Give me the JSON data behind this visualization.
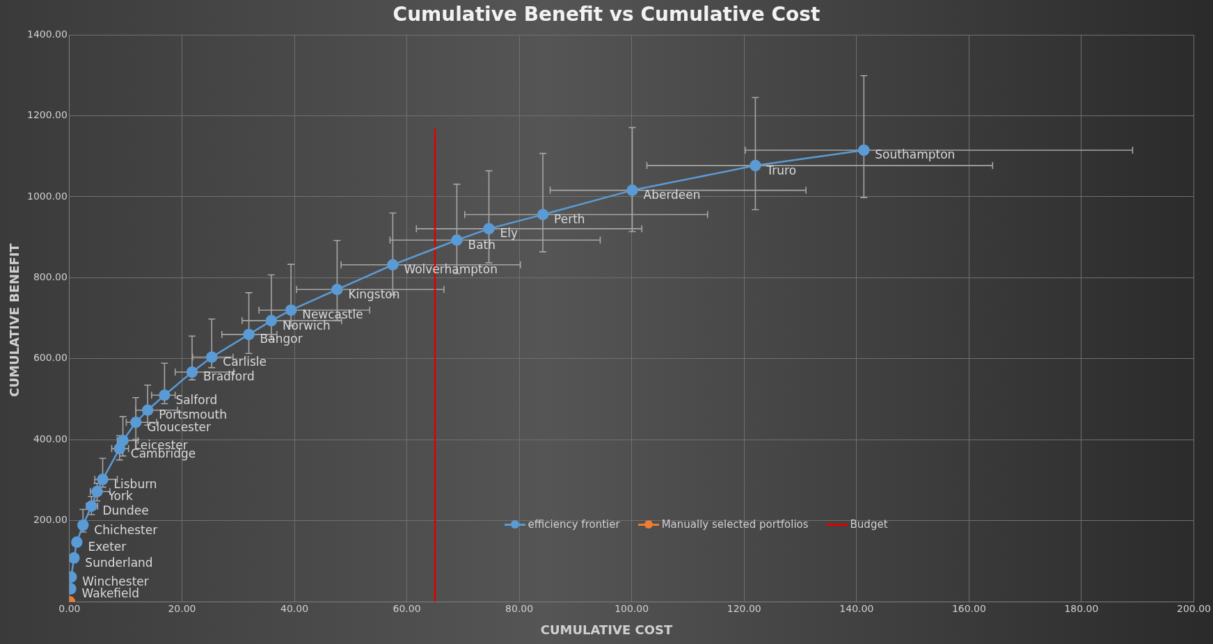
{
  "chart_data": {
    "type": "line",
    "title": "Cumulative Benefit vs Cumulative Cost",
    "xlabel": "CUMULATIVE COST",
    "ylabel": "CUMULATIVE BENEFIT",
    "xlim": [
      0,
      200
    ],
    "xticks": [
      {
        "value": 0,
        "label": "0.00"
      },
      {
        "value": 20,
        "label": "20.00"
      },
      {
        "value": 40,
        "label": "40.00"
      },
      {
        "value": 60,
        "label": "60.00"
      },
      {
        "value": 80,
        "label": "80.00"
      },
      {
        "value": 100,
        "label": "100.00"
      },
      {
        "value": 120,
        "label": "120.00"
      },
      {
        "value": 140,
        "label": "140.00"
      },
      {
        "value": 160,
        "label": "160.00"
      },
      {
        "value": 180,
        "label": "180.00"
      },
      {
        "value": 200,
        "label": "200.00"
      }
    ],
    "ylim": [
      0,
      1400
    ],
    "yticks": [
      {
        "value": 0,
        "label": null
      },
      {
        "value": 200,
        "label": "200.00"
      },
      {
        "value": 400,
        "label": "400.00"
      },
      {
        "value": 600,
        "label": "600.00"
      },
      {
        "value": 800,
        "label": "800.00"
      },
      {
        "value": 1000,
        "label": "1000.00"
      },
      {
        "value": 1200,
        "label": "1200.00"
      },
      {
        "value": 1400,
        "label": "1400.00"
      }
    ],
    "grid": true,
    "legend": "bottom right",
    "marker": "circle",
    "series": [
      {
        "name": "efficiency frontier",
        "color": "#5b9bd5",
        "x": [
          0.2,
          0.3,
          0.8,
          1.3,
          2.4,
          3.9,
          4.9,
          5.9,
          8.9,
          9.5,
          11.8,
          13.9,
          16.9,
          21.8,
          25.3,
          31.9,
          35.9,
          39.4,
          47.6,
          57.5,
          68.9,
          74.6,
          84.2,
          100.1,
          122.0,
          141.3
        ],
        "values": [
          32,
          61,
          108,
          147,
          189,
          236,
          272,
          302,
          378,
          398,
          443,
          473,
          510,
          567,
          604,
          660,
          694,
          720,
          771,
          832,
          893,
          921,
          956,
          1016,
          1077,
          1115
        ],
        "errors": [
          null,
          null,
          null,
          null,
          [
            172,
            228
          ],
          [
            215,
            260
          ],
          [
            249,
            292
          ],
          [
            283,
            354
          ],
          [
            350,
            410
          ],
          [
            360,
            457
          ],
          [
            401,
            504
          ],
          [
            436,
            535
          ],
          [
            489,
            589
          ],
          [
            548,
            656
          ],
          [
            578,
            698
          ],
          [
            613,
            763
          ],
          [
            648,
            807
          ],
          [
            681,
            833
          ],
          [
            695,
            892
          ],
          [
            758,
            960
          ],
          [
            810,
            1031
          ],
          [
            837,
            1064
          ],
          [
            864,
            1107
          ],
          [
            914,
            1171
          ],
          [
            968,
            1245
          ],
          [
            998,
            1299
          ]
        ],
        "xerrors": [
          null,
          null,
          null,
          null,
          null,
          [
            3,
            5
          ],
          [
            3.7,
            7.2
          ],
          [
            4.5,
            8.5
          ],
          [
            7.5,
            10.5
          ],
          [
            8.5,
            12.2
          ],
          [
            10.1,
            15.5
          ],
          [
            11.8,
            19.2
          ],
          [
            14.6,
            18.8
          ],
          [
            18.8,
            29.2
          ],
          [
            21.9,
            29.1
          ],
          [
            27.1,
            36.9
          ],
          [
            30.7,
            48.4
          ],
          [
            33.7,
            53.4
          ],
          [
            40.4,
            66.6
          ],
          [
            48.3,
            80.2
          ],
          [
            57.0,
            94.4
          ],
          [
            61.7,
            101.8
          ],
          [
            70.3,
            113.5
          ],
          [
            85.5,
            131.0
          ],
          [
            102.7,
            164.2
          ],
          [
            120.2,
            189.1
          ]
        ]
      },
      {
        "name": "Manually selected portfolios",
        "color": "#ed7d31",
        "x": [
          0
        ],
        "values": [
          0
        ]
      },
      {
        "name": "Budget",
        "color": "#e00000",
        "marker": "none",
        "x": [
          65,
          65
        ],
        "values": [
          0,
          1168
        ]
      }
    ],
    "annotations": [
      {
        "text": "Wakefield",
        "x": 0.2,
        "y": 32
      },
      {
        "text": "Winchester",
        "x": 0.3,
        "y": 61
      },
      {
        "text": "Sunderland",
        "x": 0.8,
        "y": 108
      },
      {
        "text": "Exeter",
        "x": 1.3,
        "y": 147
      },
      {
        "text": "Chichester",
        "x": 2.4,
        "y": 189
      },
      {
        "text": "Dundee",
        "x": 3.9,
        "y": 236
      },
      {
        "text": "York",
        "x": 4.9,
        "y": 272
      },
      {
        "text": "Lisburn",
        "x": 5.9,
        "y": 302
      },
      {
        "text": "Cambridge",
        "x": 8.9,
        "y": 378
      },
      {
        "text": "Leicester",
        "x": 9.5,
        "y": 398
      },
      {
        "text": "Gloucester",
        "x": 11.8,
        "y": 443
      },
      {
        "text": "Portsmouth",
        "x": 13.9,
        "y": 473
      },
      {
        "text": "Salford",
        "x": 16.9,
        "y": 510
      },
      {
        "text": "Bradford",
        "x": 21.8,
        "y": 567
      },
      {
        "text": "Carlisle",
        "x": 25.3,
        "y": 604
      },
      {
        "text": "Bangor",
        "x": 31.9,
        "y": 660
      },
      {
        "text": "Norwich",
        "x": 35.9,
        "y": 694
      },
      {
        "text": "Newcastle",
        "x": 39.4,
        "y": 720
      },
      {
        "text": "Kingston",
        "x": 47.6,
        "y": 771
      },
      {
        "text": "Wolverhampton",
        "x": 57.5,
        "y": 832
      },
      {
        "text": "Bath",
        "x": 68.9,
        "y": 893
      },
      {
        "text": "Ely",
        "x": 74.6,
        "y": 921
      },
      {
        "text": "Perth",
        "x": 84.2,
        "y": 956
      },
      {
        "text": "Aberdeen",
        "x": 100.1,
        "y": 1016
      },
      {
        "text": "Truro",
        "x": 122.0,
        "y": 1077
      },
      {
        "text": "Southampton",
        "x": 141.3,
        "y": 1115
      }
    ]
  }
}
